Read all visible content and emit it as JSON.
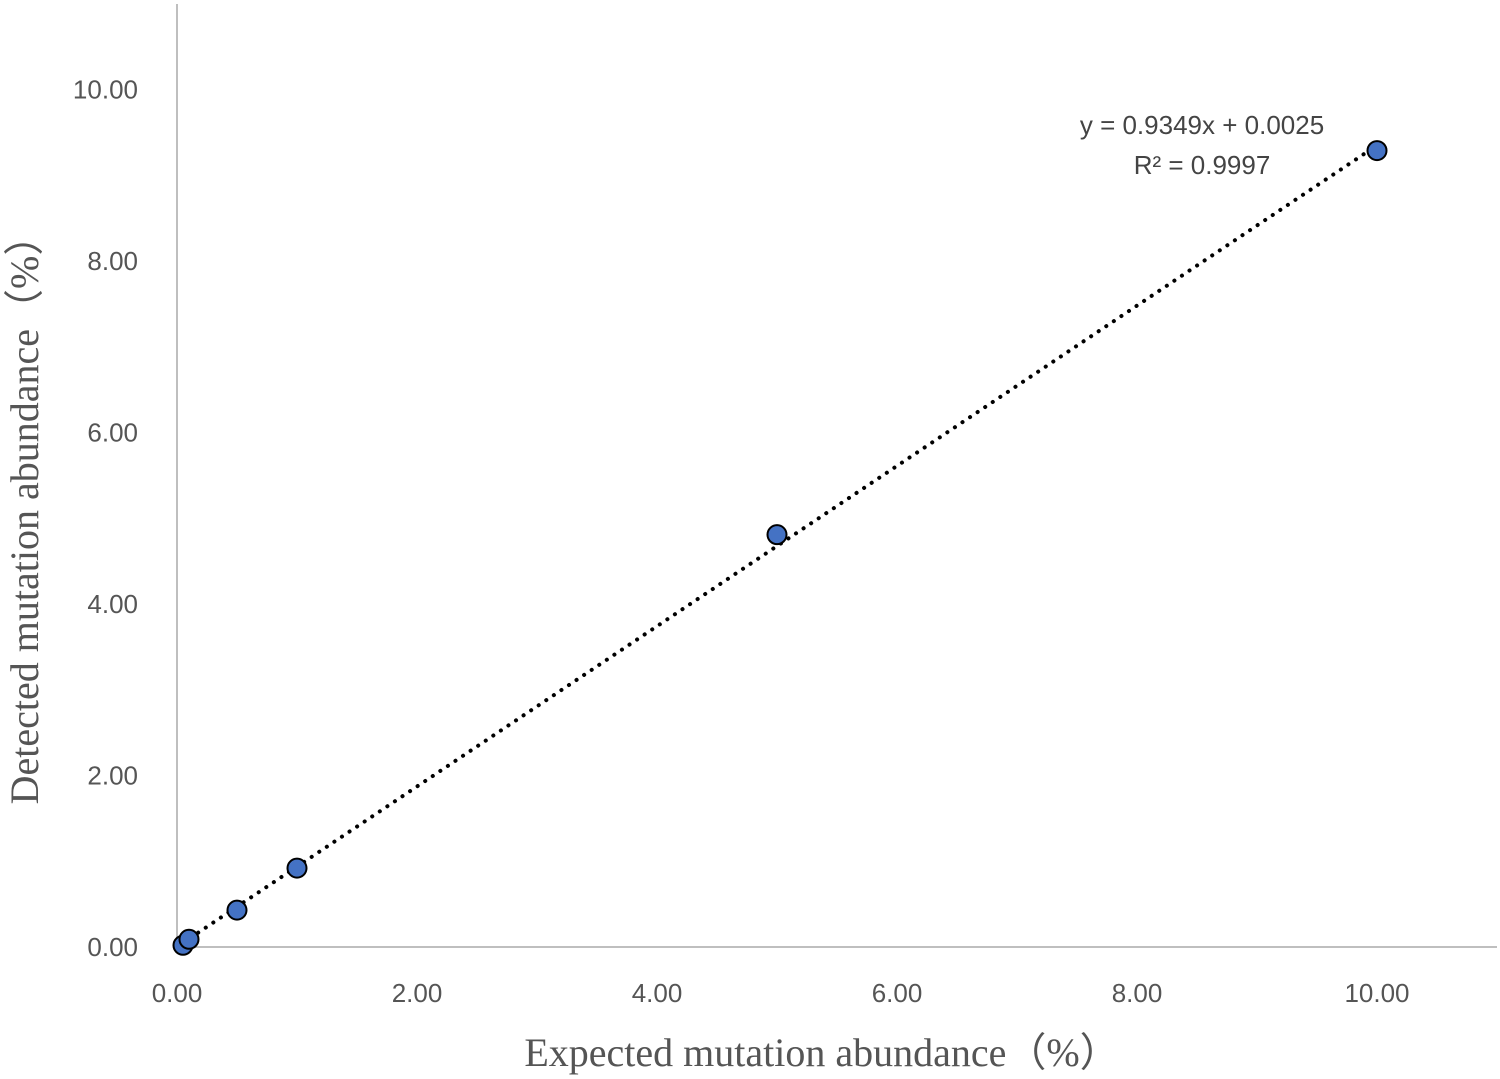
{
  "chart_data": {
    "type": "scatter",
    "xlabel": "Expected mutation abundance（%）",
    "ylabel": "Detected mutation abundance（%）",
    "xlim": [
      0,
      11
    ],
    "ylim": [
      0,
      11
    ],
    "xticks": [
      "0.00",
      "2.00",
      "4.00",
      "6.00",
      "8.00",
      "10.00"
    ],
    "yticks": [
      "0.00",
      "2.00",
      "4.00",
      "6.00",
      "8.00",
      "10.00"
    ],
    "grid": false,
    "series": [
      {
        "points": [
          {
            "x": 0.05,
            "y": 0.02
          },
          {
            "x": 0.1,
            "y": 0.09
          },
          {
            "x": 0.5,
            "y": 0.43
          },
          {
            "x": 1.0,
            "y": 0.92
          },
          {
            "x": 5.0,
            "y": 4.81
          },
          {
            "x": 10.0,
            "y": 9.29
          }
        ],
        "color": "#4472C4"
      }
    ],
    "trendline": {
      "type": "linear",
      "slope": 0.9349,
      "intercept": 0.0025,
      "style": "dotted",
      "color": "#000000"
    },
    "annotations": {
      "equation": "y = 0.9349x + 0.0025",
      "r_squared": "R² = 0.9997"
    }
  }
}
